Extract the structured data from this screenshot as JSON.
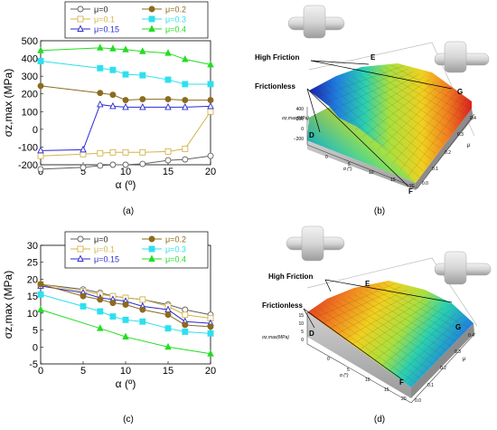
{
  "figure": {
    "panel_labels": [
      "(a)",
      "(b)",
      "(c)",
      "(d)"
    ]
  },
  "chart_data": [
    {
      "type": "line",
      "panel": "(a)",
      "xlabel": "α (º)",
      "ylabel": "σz,max (MPa)",
      "xlim": [
        0,
        20
      ],
      "ylim": [
        -200,
        500
      ],
      "xticks": [
        0,
        5,
        10,
        15,
        20
      ],
      "yticks": [
        -200,
        -100,
        0,
        100,
        200,
        300,
        400,
        500
      ],
      "grid": false,
      "legend": "top",
      "series": [
        {
          "name": "μ=0",
          "color": "#606060",
          "marker": "circle-open",
          "x": [
            0,
            5,
            7,
            8.5,
            10,
            12,
            15,
            17,
            20
          ],
          "y": [
            -225,
            -215,
            -205,
            -200,
            -200,
            -195,
            -175,
            -170,
            -150
          ]
        },
        {
          "name": "μ=0.1",
          "color": "#d4b44a",
          "marker": "square-open",
          "x": [
            0,
            5,
            7,
            8.5,
            10,
            12,
            15,
            17,
            20
          ],
          "y": [
            -150,
            -140,
            -135,
            -130,
            -130,
            -130,
            -125,
            -110,
            100
          ]
        },
        {
          "name": "μ=0.15",
          "color": "#2a2ad0",
          "marker": "triangle-open",
          "x": [
            0,
            5,
            7,
            8.5,
            10,
            12,
            15,
            17,
            20
          ],
          "y": [
            -120,
            -115,
            140,
            130,
            125,
            125,
            125,
            125,
            130
          ]
        },
        {
          "name": "μ=0.2",
          "color": "#8b6b1e",
          "marker": "circle-filled",
          "x": [
            0,
            7,
            8.5,
            10,
            12,
            15,
            17,
            20
          ],
          "y": [
            245,
            205,
            195,
            165,
            170,
            170,
            165,
            165
          ]
        },
        {
          "name": "μ=0.3",
          "color": "#2ee0ee",
          "marker": "square-filled",
          "x": [
            0,
            7,
            8.5,
            10,
            12,
            15,
            17,
            20
          ],
          "y": [
            385,
            345,
            335,
            310,
            305,
            280,
            255,
            255
          ]
        },
        {
          "name": "μ=0.4",
          "color": "#22dd22",
          "marker": "triangle-filled",
          "x": [
            0,
            7,
            8.5,
            10,
            12,
            15,
            17,
            20
          ],
          "y": [
            445,
            460,
            455,
            450,
            440,
            430,
            395,
            365
          ]
        }
      ]
    },
    {
      "type": "line",
      "panel": "(c)",
      "xlabel": "α (º)",
      "ylabel": "σz,max (MPa)",
      "xlim": [
        0,
        20
      ],
      "ylim": [
        -5,
        30
      ],
      "xticks": [
        0,
        5,
        10,
        15,
        20
      ],
      "yticks": [
        -5,
        0,
        5,
        10,
        15,
        20,
        25,
        30
      ],
      "grid": false,
      "legend": "top",
      "series": [
        {
          "name": "μ=0",
          "color": "#606060",
          "marker": "circle-open",
          "x": [
            0,
            5,
            7,
            8.5,
            10,
            12,
            15,
            17,
            20
          ],
          "y": [
            18.5,
            17,
            16,
            15,
            14.5,
            14,
            12.5,
            11,
            9.5
          ]
        },
        {
          "name": "μ=0.1",
          "color": "#d4b44a",
          "marker": "square-open",
          "x": [
            0,
            5,
            7,
            8.5,
            10,
            12,
            15,
            17,
            20
          ],
          "y": [
            18.5,
            16.5,
            15.5,
            15,
            14.5,
            14,
            12,
            9.5,
            8.5
          ]
        },
        {
          "name": "μ=0.15",
          "color": "#2a2ad0",
          "marker": "triangle-open",
          "x": [
            0,
            5,
            7,
            8.5,
            10,
            12,
            15,
            17,
            20
          ],
          "y": [
            18,
            16,
            14.5,
            14,
            13.5,
            12,
            11,
            7.5,
            7
          ]
        },
        {
          "name": "μ=0.2",
          "color": "#8b6b1e",
          "marker": "circle-filled",
          "x": [
            0,
            5,
            7,
            8.5,
            10,
            12,
            15,
            17,
            20
          ],
          "y": [
            18.5,
            15,
            14,
            13,
            12.5,
            11,
            9.5,
            6.5,
            6
          ]
        },
        {
          "name": "μ=0.3",
          "color": "#2ee0ee",
          "marker": "square-filled",
          "x": [
            0,
            5,
            7,
            8.5,
            10,
            12,
            15,
            17,
            20
          ],
          "y": [
            15.5,
            12,
            10.5,
            9,
            8,
            7.5,
            5.5,
            4.5,
            4
          ]
        },
        {
          "name": "μ=0.4",
          "color": "#22dd22",
          "marker": "triangle-filled",
          "x": [
            0,
            7,
            10,
            15,
            20
          ],
          "y": [
            11,
            5.5,
            3,
            0,
            -2
          ]
        }
      ]
    },
    {
      "type": "surface",
      "panel": "(b)",
      "xlabel": "α (°)",
      "ylabel": "μ",
      "zlabel": "σz,max(MPa)",
      "xticks": [
        0,
        5,
        10,
        15,
        20
      ],
      "yticks": [
        0.0,
        0.1,
        0.2,
        0.3,
        0.4
      ],
      "zticks": [
        -200,
        0,
        200,
        400
      ],
      "annotations": [
        "High Friction",
        "Frictionless"
      ],
      "corner_labels": [
        "D",
        "E",
        "F",
        "G"
      ],
      "colormap": [
        "#1a1aa8",
        "#1e7ee0",
        "#2ad0b0",
        "#a8e040",
        "#f0d020",
        "#f08020",
        "#d82020"
      ]
    },
    {
      "type": "surface",
      "panel": "(d)",
      "xlabel": "α (°)",
      "ylabel": "μ",
      "zlabel": "σz,max(MPa)",
      "xticks": [
        0,
        5,
        10,
        15,
        20
      ],
      "yticks": [
        0.0,
        0.1,
        0.2,
        0.3,
        0.4
      ],
      "zticks": [
        0,
        5,
        10,
        15
      ],
      "annotations": [
        "High Friction",
        "Frictionless"
      ],
      "corner_labels": [
        "D",
        "E",
        "F",
        "G"
      ],
      "colormap": [
        "#1a1aa8",
        "#1e7ee0",
        "#2ad0b0",
        "#a8e040",
        "#f0d020",
        "#f08020",
        "#d82020"
      ]
    }
  ]
}
